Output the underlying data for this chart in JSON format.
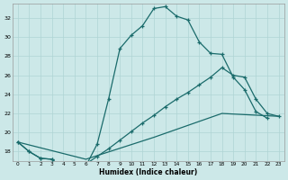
{
  "xlabel": "Humidex (Indice chaleur)",
  "bg_color": "#cce8e8",
  "grid_color": "#afd4d4",
  "line_color": "#1a6b6b",
  "xlim_min": -0.5,
  "xlim_max": 23.5,
  "ylim_min": 17.0,
  "ylim_max": 33.5,
  "yticks": [
    18,
    20,
    22,
    24,
    26,
    28,
    30,
    32
  ],
  "xticks": [
    0,
    1,
    2,
    3,
    4,
    5,
    6,
    7,
    8,
    9,
    10,
    11,
    12,
    13,
    14,
    15,
    16,
    17,
    18,
    19,
    20,
    21,
    22,
    23
  ],
  "series1_x": [
    0,
    1,
    2,
    3,
    4,
    5,
    6,
    7,
    8,
    9,
    10,
    11,
    12,
    13,
    14,
    15,
    16,
    17,
    18,
    19,
    20,
    21,
    22
  ],
  "series1_y": [
    19.0,
    18.0,
    17.3,
    17.2,
    16.2,
    16.2,
    16.5,
    18.8,
    23.5,
    28.8,
    30.2,
    31.2,
    33.0,
    33.2,
    32.2,
    31.8,
    29.5,
    28.3,
    28.2,
    25.8,
    24.5,
    22.2,
    21.5
  ],
  "series2_x": [
    0,
    1,
    2,
    3,
    4,
    5,
    6,
    7,
    8,
    9,
    10,
    11,
    12,
    13,
    14,
    15,
    16,
    17,
    18,
    19,
    20,
    21,
    22,
    23
  ],
  "series2_y": [
    19.0,
    18.0,
    17.3,
    17.2,
    16.2,
    16.3,
    16.7,
    17.5,
    18.3,
    19.2,
    20.1,
    21.0,
    21.8,
    22.7,
    23.5,
    24.2,
    25.0,
    25.8,
    26.8,
    26.0,
    25.8,
    23.5,
    22.0,
    21.7
  ],
  "series3_x": [
    0,
    6,
    12,
    18,
    23
  ],
  "series3_y": [
    19.0,
    17.2,
    19.5,
    22.0,
    21.7
  ]
}
